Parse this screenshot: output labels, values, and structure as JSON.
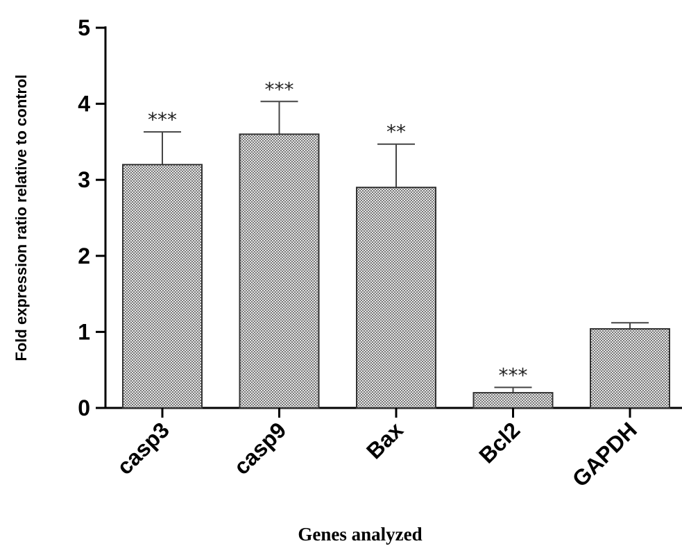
{
  "chart_data": {
    "type": "bar",
    "categories": [
      "casp3",
      "casp9",
      "Bax",
      "Bcl2",
      "GAPDH"
    ],
    "values": [
      3.2,
      3.6,
      2.9,
      0.2,
      1.04
    ],
    "error": [
      0.43,
      0.43,
      0.57,
      0.07,
      0.08
    ],
    "significance": [
      "***",
      "***",
      "**",
      "***",
      ""
    ],
    "xlabel": "Genes analyzed",
    "ylabel": "Fold expression ratio relative to control",
    "ylim": [
      0,
      5
    ],
    "yticks": [
      "0",
      "1",
      "2",
      "3",
      "4",
      "5"
    ],
    "bar_fill": "checkered gray",
    "grid": false,
    "legend": "none"
  }
}
